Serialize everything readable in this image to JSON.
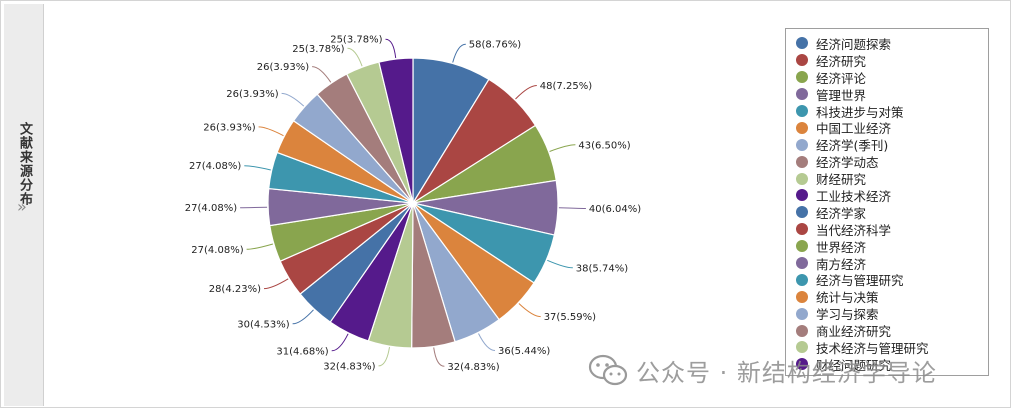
{
  "sidebar": {
    "title": "文献来源分布",
    "expand_glyph": "»"
  },
  "watermark": {
    "icon": "wechat-icon",
    "text": "公众号 · 新结构经济学导论"
  },
  "chart_data": {
    "type": "pie",
    "start_angle_deg": 0,
    "direction": "clockwise",
    "legend_position": "right",
    "series": [
      {
        "name": "经济问题探索",
        "value": 58,
        "label": "58(8.76%)",
        "color": "#4572a7"
      },
      {
        "name": "经济研究",
        "value": 48,
        "label": "48(7.25%)",
        "color": "#aa4643"
      },
      {
        "name": "经济评论",
        "value": 43,
        "label": "43(6.50%)",
        "color": "#89a54e"
      },
      {
        "name": "管理世界",
        "value": 40,
        "label": "40(6.04%)",
        "color": "#80699b"
      },
      {
        "name": "科技进步与对策",
        "value": 38,
        "label": "38(5.74%)",
        "color": "#3d96ae"
      },
      {
        "name": "中国工业经济",
        "value": 37,
        "label": "37(5.59%)",
        "color": "#db843d"
      },
      {
        "name": "经济学(季刊)",
        "value": 36,
        "label": "36(5.44%)",
        "color": "#92a8cd"
      },
      {
        "name": "经济学动态",
        "value": 32,
        "label": "32(4.83%)",
        "color": "#a47d7c"
      },
      {
        "name": "财经研究",
        "value": 32,
        "label": "32(4.83%)",
        "color": "#b5ca92"
      },
      {
        "name": "工业技术经济",
        "value": 31,
        "label": "31(4.68%)",
        "color": "#551a8b"
      },
      {
        "name": "经济学家",
        "value": 30,
        "label": "30(4.53%)",
        "color": "#4572a7"
      },
      {
        "name": "当代经济科学",
        "value": 28,
        "label": "28(4.23%)",
        "color": "#aa4643"
      },
      {
        "name": "世界经济",
        "value": 27,
        "label": "27(4.08%)",
        "color": "#89a54e"
      },
      {
        "name": "南方经济",
        "value": 27,
        "label": "27(4.08%)",
        "color": "#80699b"
      },
      {
        "name": "经济与管理研究",
        "value": 27,
        "label": "27(4.08%)",
        "color": "#3d96ae"
      },
      {
        "name": "统计与决策",
        "value": 26,
        "label": "26(3.93%)",
        "color": "#db843d"
      },
      {
        "name": "学习与探索",
        "value": 26,
        "label": "26(3.93%)",
        "color": "#92a8cd"
      },
      {
        "name": "商业经济研究",
        "value": 26,
        "label": "26(3.93%)",
        "color": "#a47d7c"
      },
      {
        "name": "技术经济与管理研究",
        "value": 25,
        "label": "25(3.78%)",
        "color": "#b5ca92"
      },
      {
        "name": "财经问题研究",
        "value": 25,
        "label": "25(3.78%)",
        "color": "#551a8b"
      }
    ]
  }
}
